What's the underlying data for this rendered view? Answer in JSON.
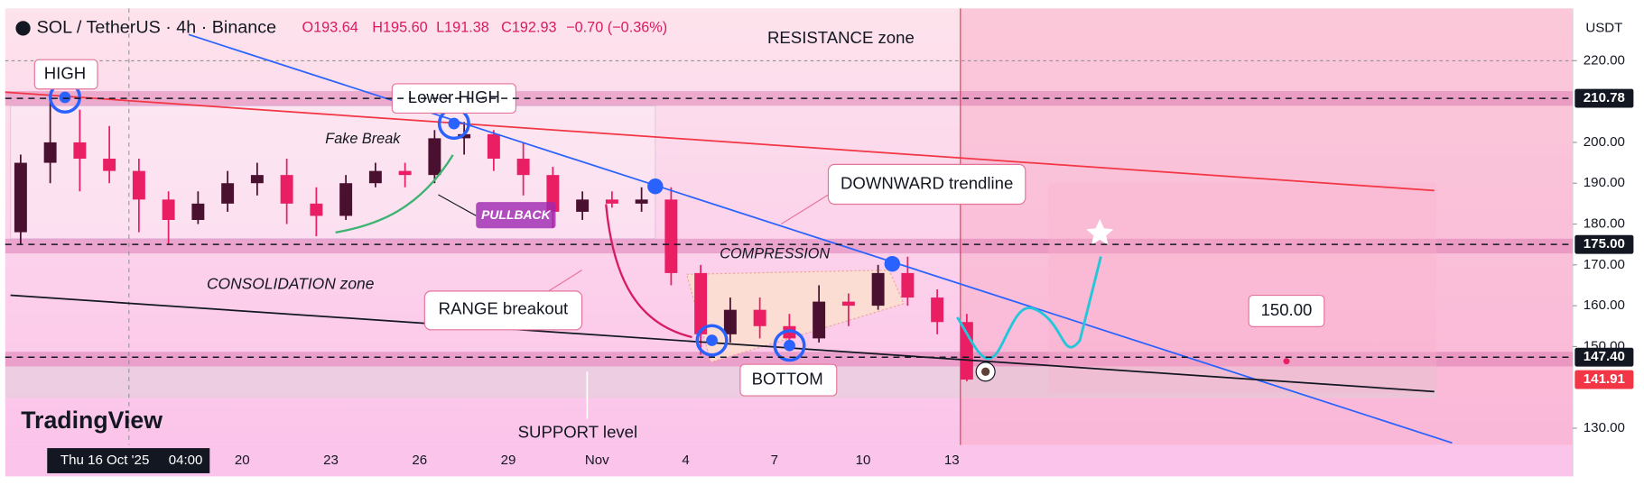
{
  "chart_data": {
    "type": "candlestick",
    "title": "SOL / TetherUS · 4h · Binance",
    "ohlc_legend": {
      "values": [
        193.64,
        195.6,
        191.38,
        192.93,
        -0.7
      ],
      "value_labels": [
        "O193.64",
        "H195.60",
        "L191.38",
        "C192.93",
        "−0.70 (−0.36%)"
      ]
    },
    "currency": "USDT",
    "logo": "TradingView",
    "x_labels": [
      "Thu 16 Oct '25",
      "04:00",
      "20",
      "23",
      "26",
      "29",
      "Nov",
      "4",
      "7",
      "10",
      "13"
    ],
    "open": [
      178,
      195,
      200,
      196,
      193,
      186,
      181,
      185,
      190,
      192,
      185,
      182,
      190,
      193,
      192,
      201,
      202,
      196,
      192,
      183,
      186,
      185,
      186,
      168,
      153,
      159,
      155,
      152,
      161,
      160,
      168,
      162,
      156
    ],
    "high": [
      197,
      211.5,
      208,
      204,
      196,
      188,
      188,
      193,
      195,
      196,
      189,
      192,
      195,
      195,
      203,
      205,
      203,
      200,
      194,
      188,
      188,
      189,
      189,
      170,
      162,
      162,
      158,
      165,
      163,
      170,
      172,
      164,
      158
    ],
    "low": [
      175,
      190,
      188,
      190,
      178,
      175,
      180,
      183,
      187,
      180,
      177,
      181,
      189,
      189,
      190,
      197,
      193,
      187,
      179,
      181,
      184,
      183,
      165,
      148,
      151,
      152,
      149.5,
      151,
      155,
      159,
      160,
      153,
      141.5
    ],
    "close": [
      195,
      200,
      196,
      193,
      186,
      181,
      185,
      190,
      192,
      185,
      182,
      190,
      193,
      192,
      201,
      202,
      196,
      192,
      183,
      186,
      185,
      186,
      168,
      153,
      159,
      155,
      152,
      161,
      160,
      168,
      162,
      156,
      141.91
    ],
    "up_color": "#4a1030",
    "down_color": "#e91e63",
    "ylim": [
      125.9,
      232.8
    ],
    "yticks": [
      {
        "value": 130,
        "label": "130.00"
      },
      {
        "value": 150,
        "label": "150.00"
      },
      {
        "value": 160,
        "label": "160.00"
      },
      {
        "value": 170,
        "label": "170.00"
      },
      {
        "value": 180,
        "label": "180.00"
      },
      {
        "value": 190,
        "label": "190.00"
      },
      {
        "value": 200,
        "label": "200.00"
      },
      {
        "value": 220,
        "label": "220.00"
      }
    ],
    "grid": false,
    "price_lines": [
      {
        "value": 210.78,
        "label": "210.78",
        "color": "#131722",
        "dashed": true
      },
      {
        "value": 175,
        "label": "175.00",
        "color": "#131722",
        "dashed": true
      },
      {
        "value": 147.4,
        "label": "147.40",
        "color": "#131722",
        "dashed": true
      },
      {
        "value": 141.91,
        "label": "141.91",
        "color": "#f23645",
        "dashed": false
      }
    ],
    "target_note": {
      "value": 150,
      "label": "150.00"
    },
    "annotations": {
      "high": "HIGH",
      "lower_high": "Lower HIGH",
      "fake_break": "Fake Break",
      "pullback": "PULLBACK",
      "resistance": "RESISTANCE zone",
      "downward": "DOWNWARD trendline",
      "compression": "COMPRESSION",
      "consolidation": "CONSOLIDATION zone",
      "range_breakout": "RANGE breakout",
      "bottom": "BOTTOM",
      "support": "SUPPORT level"
    }
  }
}
